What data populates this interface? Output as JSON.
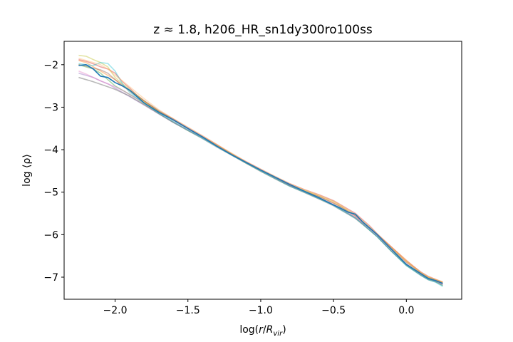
{
  "chart_data": {
    "type": "line",
    "title": "z ≈ 1.8, h206_HR_sn1dy300ro100ss",
    "xlabel": "log(r/R_vir)",
    "ylabel": "log ⟨ρ⟩",
    "xlim": [
      -2.35,
      0.38
    ],
    "ylim": [
      -7.52,
      -1.45
    ],
    "grid": false,
    "legend": "none",
    "xticks": [
      {
        "value": -2.0,
        "label": "−2.0"
      },
      {
        "value": -1.5,
        "label": "−1.5"
      },
      {
        "value": -1.0,
        "label": "−1.0"
      },
      {
        "value": -0.5,
        "label": "−0.5"
      },
      {
        "value": 0.0,
        "label": "0.0"
      }
    ],
    "yticks": [
      {
        "value": -2,
        "label": "−2"
      },
      {
        "value": -3,
        "label": "−3"
      },
      {
        "value": -4,
        "label": "−4"
      },
      {
        "value": -5,
        "label": "−5"
      },
      {
        "value": -6,
        "label": "−6"
      },
      {
        "value": -7,
        "label": "−7"
      }
    ],
    "series": [
      {
        "color": "#1f77b4",
        "alpha": 1.0,
        "x": [
          -2.25,
          -2.2,
          -2.15,
          -2.1,
          -2.05,
          -2.0,
          -1.95,
          -1.9,
          -1.85,
          -1.8,
          -1.7,
          -1.6,
          -1.5,
          -1.4,
          -1.3,
          -1.2,
          -1.1,
          -1.0,
          -0.9,
          -0.8,
          -0.7,
          -0.6,
          -0.5,
          -0.45,
          -0.4,
          -0.35,
          -0.3,
          -0.25,
          -0.2,
          -0.1,
          0.0,
          0.1,
          0.15,
          0.2,
          0.25
        ],
        "y": [
          -2.02,
          -2.0,
          -2.1,
          -2.27,
          -2.3,
          -2.42,
          -2.5,
          -2.6,
          -2.75,
          -2.9,
          -3.12,
          -3.3,
          -3.5,
          -3.7,
          -3.92,
          -4.12,
          -4.3,
          -4.48,
          -4.65,
          -4.82,
          -4.98,
          -5.13,
          -5.3,
          -5.38,
          -5.47,
          -5.52,
          -5.7,
          -5.85,
          -6.0,
          -6.35,
          -6.7,
          -6.92,
          -7.03,
          -7.08,
          -7.15
        ]
      },
      {
        "color": "#ff7f0e",
        "alpha": 0.4,
        "x": [
          -2.25,
          -2.2,
          -2.15,
          -2.1,
          -2.05,
          -2.0,
          -1.95,
          -1.9,
          -1.85,
          -1.8,
          -1.7,
          -1.6,
          -1.5,
          -1.4,
          -1.3,
          -1.2,
          -1.1,
          -1.0,
          -0.9,
          -0.8,
          -0.7,
          -0.6,
          -0.5,
          -0.45,
          -0.4,
          -0.35,
          -0.3,
          -0.25,
          -0.2,
          -0.1,
          0.0,
          0.1,
          0.15,
          0.2,
          0.25
        ],
        "y": [
          -1.9,
          -1.95,
          -2.05,
          -2.15,
          -2.25,
          -2.35,
          -2.5,
          -2.62,
          -2.75,
          -2.87,
          -3.1,
          -3.3,
          -3.5,
          -3.7,
          -3.9,
          -4.1,
          -4.3,
          -4.48,
          -4.66,
          -4.84,
          -4.97,
          -5.1,
          -5.25,
          -5.34,
          -5.45,
          -5.55,
          -5.72,
          -5.85,
          -6.0,
          -6.3,
          -6.6,
          -6.9,
          -7.0,
          -7.06,
          -7.12
        ]
      },
      {
        "color": "#2ca02c",
        "alpha": 0.4,
        "x": [
          -2.25,
          -2.2,
          -2.15,
          -2.1,
          -2.05,
          -2.0,
          -1.95,
          -1.9,
          -1.85,
          -1.8,
          -1.7,
          -1.6,
          -1.5,
          -1.4,
          -1.3,
          -1.2,
          -1.1,
          -1.0,
          -0.9,
          -0.8,
          -0.7,
          -0.6,
          -0.5,
          -0.45,
          -0.4,
          -0.35,
          -0.3,
          -0.25,
          -0.2,
          -0.1,
          0.0,
          0.1,
          0.15,
          0.2,
          0.25
        ],
        "y": [
          -2.0,
          -2.05,
          -2.1,
          -2.2,
          -2.35,
          -2.5,
          -2.6,
          -2.7,
          -2.8,
          -2.92,
          -3.15,
          -3.35,
          -3.55,
          -3.72,
          -3.92,
          -4.12,
          -4.32,
          -4.5,
          -4.68,
          -4.85,
          -5.0,
          -5.15,
          -5.3,
          -5.4,
          -5.5,
          -5.6,
          -5.75,
          -5.9,
          -6.05,
          -6.4,
          -6.72,
          -6.95,
          -7.05,
          -7.1,
          -7.2
        ]
      },
      {
        "color": "#d62728",
        "alpha": 0.4,
        "x": [
          -2.25,
          -2.2,
          -2.15,
          -2.1,
          -2.05,
          -2.0,
          -1.95,
          -1.9,
          -1.85,
          -1.8,
          -1.7,
          -1.6,
          -1.5,
          -1.4,
          -1.3,
          -1.2,
          -1.1,
          -1.0,
          -0.9,
          -0.8,
          -0.7,
          -0.6,
          -0.5,
          -0.45,
          -0.4,
          -0.35,
          -0.3,
          -0.25,
          -0.2,
          -0.1,
          0.0,
          0.1,
          0.15,
          0.2,
          0.25
        ],
        "y": [
          -1.88,
          -1.92,
          -1.98,
          -2.05,
          -2.1,
          -2.2,
          -2.4,
          -2.55,
          -2.72,
          -2.85,
          -3.1,
          -3.28,
          -3.48,
          -3.68,
          -3.88,
          -4.1,
          -4.28,
          -4.46,
          -4.64,
          -4.8,
          -4.94,
          -5.06,
          -5.2,
          -5.3,
          -5.4,
          -5.5,
          -5.65,
          -5.8,
          -5.98,
          -6.3,
          -6.62,
          -6.88,
          -6.98,
          -7.05,
          -7.12
        ]
      },
      {
        "color": "#9467bd",
        "alpha": 0.4,
        "x": [
          -2.25,
          -2.2,
          -2.15,
          -2.1,
          -2.05,
          -2.0,
          -1.95,
          -1.9,
          -1.85,
          -1.8,
          -1.7,
          -1.6,
          -1.5,
          -1.4,
          -1.3,
          -1.2,
          -1.1,
          -1.0,
          -0.9,
          -0.8,
          -0.7,
          -0.6,
          -0.5,
          -0.45,
          -0.4,
          -0.35,
          -0.3,
          -0.25,
          -0.2,
          -0.1,
          0.0,
          0.1,
          0.15,
          0.2,
          0.25
        ],
        "y": [
          -2.2,
          -2.25,
          -2.3,
          -2.38,
          -2.45,
          -2.55,
          -2.65,
          -2.75,
          -2.85,
          -2.95,
          -3.16,
          -3.36,
          -3.54,
          -3.72,
          -3.92,
          -4.12,
          -4.3,
          -4.48,
          -4.66,
          -4.84,
          -4.99,
          -5.14,
          -5.3,
          -5.4,
          -5.5,
          -5.6,
          -5.74,
          -5.88,
          -6.03,
          -6.38,
          -6.7,
          -6.94,
          -7.04,
          -7.09,
          -7.17
        ]
      },
      {
        "color": "#8c564b",
        "alpha": 0.4,
        "x": [
          -2.25,
          -2.2,
          -2.15,
          -2.1,
          -2.05,
          -2.0,
          -1.95,
          -1.9,
          -1.85,
          -1.8,
          -1.7,
          -1.6,
          -1.5,
          -1.4,
          -1.3,
          -1.2,
          -1.1,
          -1.0,
          -0.9,
          -0.8,
          -0.7,
          -0.6,
          -0.5,
          -0.45,
          -0.4,
          -0.35,
          -0.3,
          -0.25,
          -0.2,
          -0.1,
          0.0,
          0.1,
          0.15,
          0.2,
          0.25
        ],
        "y": [
          -2.0,
          -2.03,
          -2.08,
          -2.12,
          -2.2,
          -2.35,
          -2.48,
          -2.6,
          -2.72,
          -2.85,
          -3.08,
          -3.28,
          -3.5,
          -3.7,
          -3.9,
          -4.1,
          -4.3,
          -4.48,
          -4.66,
          -4.84,
          -4.98,
          -5.1,
          -5.26,
          -5.35,
          -5.46,
          -5.56,
          -5.7,
          -5.85,
          -6.0,
          -6.33,
          -6.65,
          -6.9,
          -7.01,
          -7.07,
          -7.14
        ]
      },
      {
        "color": "#e377c2",
        "alpha": 0.4,
        "x": [
          -2.25,
          -2.2,
          -2.15,
          -2.1,
          -2.05,
          -2.0,
          -1.95,
          -1.9,
          -1.85,
          -1.8,
          -1.7,
          -1.6,
          -1.5,
          -1.4,
          -1.3,
          -1.2,
          -1.1,
          -1.0,
          -0.9,
          -0.8,
          -0.7,
          -0.6,
          -0.5,
          -0.45,
          -0.4,
          -0.35,
          -0.3,
          -0.25,
          -0.2,
          -0.1,
          0.0,
          0.1,
          0.15,
          0.2,
          0.25
        ],
        "y": [
          -2.15,
          -2.22,
          -2.3,
          -2.38,
          -2.45,
          -2.52,
          -2.6,
          -2.7,
          -2.8,
          -2.9,
          -3.12,
          -3.32,
          -3.52,
          -3.71,
          -3.91,
          -4.11,
          -4.3,
          -4.49,
          -4.67,
          -4.84,
          -4.99,
          -5.13,
          -5.29,
          -5.38,
          -5.48,
          -5.58,
          -5.72,
          -5.87,
          -6.02,
          -6.36,
          -6.68,
          -6.93,
          -7.03,
          -7.08,
          -7.16
        ]
      },
      {
        "color": "#7f7f7f",
        "alpha": 0.55,
        "x": [
          -2.25,
          -2.2,
          -2.15,
          -2.1,
          -2.05,
          -2.0,
          -1.95,
          -1.9,
          -1.85,
          -1.8,
          -1.7,
          -1.6,
          -1.5,
          -1.4,
          -1.3,
          -1.2,
          -1.1,
          -1.0,
          -0.9,
          -0.8,
          -0.7,
          -0.6,
          -0.5,
          -0.45,
          -0.4,
          -0.35,
          -0.3,
          -0.25,
          -0.2,
          -0.1,
          0.0,
          0.1,
          0.15,
          0.2,
          0.25
        ],
        "y": [
          -2.3,
          -2.35,
          -2.4,
          -2.46,
          -2.52,
          -2.58,
          -2.66,
          -2.74,
          -2.84,
          -2.94,
          -3.15,
          -3.36,
          -3.55,
          -3.74,
          -3.94,
          -4.13,
          -4.32,
          -4.51,
          -4.69,
          -4.86,
          -5.01,
          -5.16,
          -5.32,
          -5.42,
          -5.52,
          -5.62,
          -5.76,
          -5.9,
          -6.05,
          -6.4,
          -6.72,
          -6.96,
          -7.06,
          -7.11,
          -7.19
        ]
      },
      {
        "color": "#bcbd22",
        "alpha": 0.4,
        "x": [
          -2.25,
          -2.2,
          -2.15,
          -2.1,
          -2.05,
          -2.0,
          -1.95,
          -1.9,
          -1.85,
          -1.8,
          -1.7,
          -1.6,
          -1.5,
          -1.4,
          -1.3,
          -1.2,
          -1.1,
          -1.0,
          -0.9,
          -0.8,
          -0.7,
          -0.6,
          -0.5,
          -0.45,
          -0.4,
          -0.35,
          -0.3,
          -0.25,
          -0.2,
          -0.1,
          0.0,
          0.1,
          0.15,
          0.2,
          0.25
        ],
        "y": [
          -1.78,
          -1.8,
          -1.88,
          -1.95,
          -2.05,
          -2.3,
          -2.45,
          -2.58,
          -2.72,
          -2.86,
          -3.1,
          -3.3,
          -3.5,
          -3.7,
          -3.9,
          -4.1,
          -4.3,
          -4.48,
          -4.65,
          -4.82,
          -4.96,
          -5.08,
          -5.22,
          -5.32,
          -5.43,
          -5.53,
          -5.68,
          -5.83,
          -5.99,
          -6.32,
          -6.64,
          -6.9,
          -7.0,
          -7.06,
          -7.13
        ]
      },
      {
        "color": "#17becf",
        "alpha": 0.4,
        "x": [
          -2.25,
          -2.2,
          -2.15,
          -2.1,
          -2.05,
          -2.0,
          -1.95,
          -1.9,
          -1.85,
          -1.8,
          -1.7,
          -1.6,
          -1.5,
          -1.4,
          -1.3,
          -1.2,
          -1.1,
          -1.0,
          -0.9,
          -0.8,
          -0.7,
          -0.6,
          -0.5,
          -0.45,
          -0.4,
          -0.35,
          -0.3,
          -0.25,
          -0.2,
          -0.1,
          0.0,
          0.1,
          0.15,
          0.2,
          0.25
        ],
        "y": [
          -1.97,
          -2.0,
          -2.02,
          -1.95,
          -1.97,
          -2.15,
          -2.45,
          -2.65,
          -2.78,
          -2.9,
          -3.14,
          -3.34,
          -3.54,
          -3.73,
          -3.93,
          -4.13,
          -4.31,
          -4.5,
          -4.68,
          -4.86,
          -5.0,
          -5.15,
          -5.31,
          -5.41,
          -5.51,
          -5.61,
          -5.75,
          -5.9,
          -6.05,
          -6.4,
          -6.73,
          -6.96,
          -7.06,
          -7.12,
          -7.22
        ]
      },
      {
        "color": "#ffbb78",
        "alpha": 0.45,
        "x": [
          -2.25,
          -2.2,
          -2.15,
          -2.1,
          -2.05,
          -2.0,
          -1.95,
          -1.9,
          -1.85,
          -1.8,
          -1.7,
          -1.6,
          -1.5,
          -1.4,
          -1.3,
          -1.2,
          -1.1,
          -1.0,
          -0.9,
          -0.8,
          -0.7,
          -0.6,
          -0.5,
          -0.45,
          -0.4,
          -0.35,
          -0.3,
          -0.25,
          -0.2,
          -0.1,
          0.0,
          0.1,
          0.15,
          0.2,
          0.25
        ],
        "y": [
          -1.85,
          -1.9,
          -1.95,
          -2.0,
          -2.1,
          -2.25,
          -2.38,
          -2.52,
          -2.66,
          -2.8,
          -3.06,
          -3.27,
          -3.47,
          -3.67,
          -3.88,
          -4.08,
          -4.28,
          -4.46,
          -4.63,
          -4.8,
          -4.94,
          -5.07,
          -5.22,
          -5.31,
          -5.42,
          -5.53,
          -5.69,
          -5.84,
          -6.0,
          -6.32,
          -6.63,
          -6.89,
          -6.99,
          -7.05,
          -7.11
        ]
      }
    ]
  }
}
